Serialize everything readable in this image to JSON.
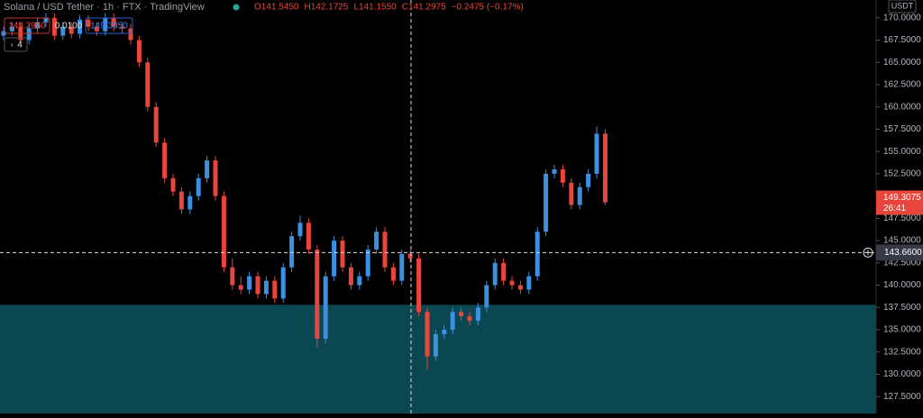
{
  "chart_data": {
    "type": "candlestick",
    "title": "Solana / USD Tether · 1h · FTX · TradingView",
    "ohlc_legend": [
      "O141.5450",
      "H142.1725",
      "L141.1550",
      "C141.2975",
      "−0.2475 (−0.17%)"
    ],
    "bid": "149.2950",
    "spread": "0.0100",
    "ask": "149.3050",
    "indicator_count": "4",
    "currency": "USDT",
    "up_color": "#3d8fe0",
    "down_color": "#e8453c",
    "open": [
      168,
      168.5,
      169,
      167.5,
      168.8,
      169.5,
      170,
      168,
      169,
      168.2,
      169.8,
      169,
      168.5,
      170,
      169,
      168.8,
      167.5,
      165,
      160,
      156,
      152,
      150.5,
      148.5,
      150,
      152,
      154,
      150,
      142,
      140,
      139.5,
      141,
      139,
      140.5,
      138.5,
      142,
      145.5,
      147,
      144,
      134,
      141,
      145,
      142,
      140,
      141,
      144,
      146,
      142,
      140.5,
      143.5,
      143,
      137,
      132,
      134.5,
      135,
      137,
      136.5,
      136,
      137.5,
      140,
      142.5,
      140.5,
      140,
      139.5,
      141,
      146,
      152.5,
      153,
      151.5,
      149,
      151,
      152.5,
      157
    ],
    "high": [
      169,
      169.5,
      169.5,
      169.3,
      170,
      170.5,
      170.5,
      169.5,
      169.5,
      170.3,
      170.3,
      169.5,
      170.5,
      170.5,
      169.5,
      169.3,
      168,
      165.5,
      160.5,
      156.5,
      152.5,
      151,
      150.5,
      152.5,
      154.5,
      154.5,
      150.5,
      143,
      141,
      141.5,
      141.5,
      141,
      141,
      142.5,
      146,
      147.8,
      147.5,
      144.5,
      141.5,
      145.5,
      145.5,
      142.5,
      141.5,
      144.5,
      146.5,
      146.5,
      142.5,
      144,
      144,
      143.5,
      137.5,
      135,
      135.5,
      137.5,
      137.5,
      137,
      138,
      140.5,
      143,
      143,
      141,
      140.5,
      141.5,
      146.5,
      153,
      153.5,
      153.5,
      152,
      151.5,
      153,
      157.8,
      157.5
    ],
    "low": [
      167.5,
      168,
      167,
      167,
      168.3,
      169,
      167.5,
      167.5,
      167.7,
      167.7,
      168.5,
      168,
      168,
      168.5,
      168.3,
      167,
      164.5,
      159.5,
      155.5,
      151.5,
      150,
      148,
      148,
      149.5,
      151.5,
      149.5,
      141.5,
      139.5,
      139,
      139,
      138.5,
      138.5,
      138,
      138,
      141.5,
      145,
      143.5,
      133,
      133.5,
      140.5,
      141.5,
      139.5,
      139.5,
      140.5,
      143.5,
      141.5,
      140,
      140,
      142.5,
      136.5,
      130.5,
      131.5,
      134,
      134.5,
      136,
      135.5,
      135.5,
      137,
      139.5,
      140,
      139.5,
      139,
      139,
      140.5,
      145.5,
      152,
      151,
      148.5,
      148.5,
      150.5,
      152,
      149
    ],
    "close": [
      168.5,
      169,
      167.5,
      168.8,
      169.5,
      170,
      168,
      169,
      168.2,
      169.8,
      169,
      168.5,
      170,
      169,
      168.8,
      167.5,
      165,
      160,
      156,
      152,
      150.5,
      148.5,
      150,
      152,
      154,
      150,
      142,
      140,
      139.5,
      141,
      139,
      140.5,
      138.5,
      142,
      145.5,
      147,
      144,
      134,
      141,
      145,
      142,
      140,
      141,
      144,
      146,
      142,
      140.5,
      143.5,
      143,
      137,
      132,
      134.5,
      135,
      137,
      136.5,
      136,
      137.5,
      140,
      142.5,
      140.5,
      140,
      139.5,
      141,
      146,
      152.5,
      153,
      151.5,
      149,
      151,
      152.5,
      157,
      149.3
    ],
    "ylim": [
      125.6,
      172.0
    ],
    "yticks": [
      {
        "value": 127.5,
        "label": "127.5000"
      },
      {
        "value": 130,
        "label": "130.0000"
      },
      {
        "value": 132.5,
        "label": "132.5000"
      },
      {
        "value": 135,
        "label": "135.0000"
      },
      {
        "value": 137.5,
        "label": "137.5000"
      },
      {
        "value": 140,
        "label": "140.0000"
      },
      {
        "value": 142.5,
        "label": "142.5000"
      },
      {
        "value": 145,
        "label": "145.0000"
      },
      {
        "value": 147.5,
        "label": "147.5000"
      },
      {
        "value": 150,
        "label": "150.0000"
      },
      {
        "value": 152.5,
        "label": "152.5000"
      },
      {
        "value": 155,
        "label": "155.0000"
      },
      {
        "value": 157.5,
        "label": "157.5000"
      },
      {
        "value": 160,
        "label": "160.0000"
      },
      {
        "value": 162.5,
        "label": "162.5000"
      },
      {
        "value": 165,
        "label": "165.0000"
      },
      {
        "value": 167.5,
        "label": "167.5000"
      },
      {
        "value": 170,
        "label": "170.0000"
      }
    ],
    "zone_top": 137.8,
    "zone_color": "#0b4750",
    "last_price": {
      "value": 149.3075,
      "label": "149.3075"
    },
    "countdown": "26:41",
    "crosshair_price": {
      "value": 143.66,
      "label": "143.6600"
    }
  }
}
